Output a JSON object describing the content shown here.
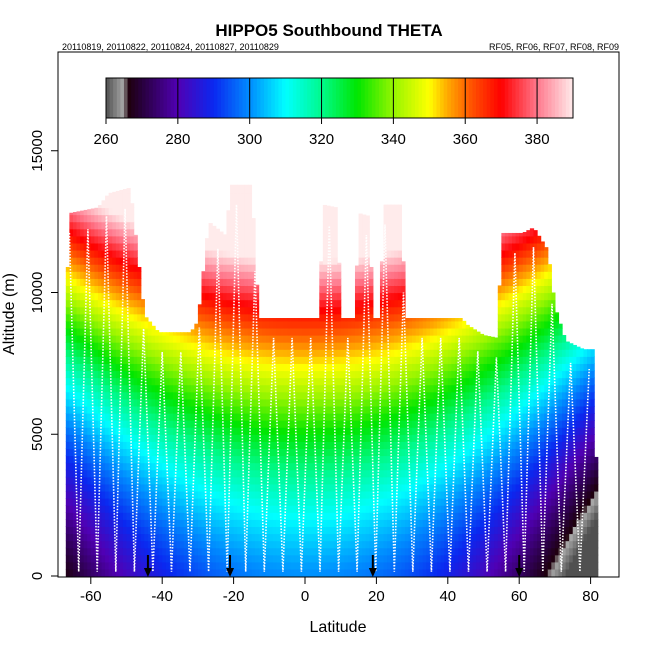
{
  "chart_data": {
    "type": "heatmap",
    "title": "HIPPO5 Southbound THETA",
    "dates_label": "20110819, 20110822, 20110824, 20110827, 20110829",
    "flights_label": "RF05, RF06, RF07, RF08, RF09",
    "xlabel": "Latitude",
    "ylabel": "Altitude (m)",
    "xlim": [
      -70,
      85
    ],
    "ylim": [
      0,
      18000
    ],
    "x_ticks": [
      -60,
      -40,
      -20,
      0,
      20,
      40,
      60,
      80
    ],
    "x_tick_labels": [
      "-60",
      "-40",
      "-20",
      "0",
      "20",
      "40",
      "60",
      "80"
    ],
    "y_ticks": [
      0,
      5000,
      10000,
      15000
    ],
    "y_tick_labels": [
      "0",
      "5000",
      "10000",
      "15000"
    ],
    "colorbar": {
      "range": [
        260,
        390
      ],
      "ticks": [
        260,
        280,
        300,
        320,
        340,
        360,
        380
      ],
      "tick_labels": [
        "260",
        "280",
        "300",
        "320",
        "340",
        "360",
        "380"
      ]
    },
    "ceiling_profile": [
      {
        "lat": -67,
        "alt": 9000
      },
      {
        "lat": -66,
        "alt": 12800
      },
      {
        "lat": -58,
        "alt": 13000
      },
      {
        "lat": -55,
        "alt": 13500
      },
      {
        "lat": -49,
        "alt": 13700
      },
      {
        "lat": -48,
        "alt": 12600
      },
      {
        "lat": -45,
        "alt": 9200
      },
      {
        "lat": -41,
        "alt": 8600
      },
      {
        "lat": -32,
        "alt": 8600
      },
      {
        "lat": -30,
        "alt": 9000
      },
      {
        "lat": -27,
        "alt": 12500
      },
      {
        "lat": -22,
        "alt": 12000
      },
      {
        "lat": -21,
        "alt": 13800
      },
      {
        "lat": -15,
        "alt": 13800
      },
      {
        "lat": -13,
        "alt": 9100
      },
      {
        "lat": 4,
        "alt": 9100
      },
      {
        "lat": 5,
        "alt": 13100
      },
      {
        "lat": 9,
        "alt": 13000
      },
      {
        "lat": 10,
        "alt": 9100
      },
      {
        "lat": 14,
        "alt": 9100
      },
      {
        "lat": 15,
        "alt": 12800
      },
      {
        "lat": 18,
        "alt": 12700
      },
      {
        "lat": 19,
        "alt": 9100
      },
      {
        "lat": 21,
        "alt": 9100
      },
      {
        "lat": 22,
        "alt": 13100
      },
      {
        "lat": 27,
        "alt": 13100
      },
      {
        "lat": 28,
        "alt": 9100
      },
      {
        "lat": 44,
        "alt": 9100
      },
      {
        "lat": 45,
        "alt": 8900
      },
      {
        "lat": 50,
        "alt": 8500
      },
      {
        "lat": 54,
        "alt": 8400
      },
      {
        "lat": 55,
        "alt": 12100
      },
      {
        "lat": 61,
        "alt": 12100
      },
      {
        "lat": 64,
        "alt": 12300
      },
      {
        "lat": 68,
        "alt": 11500
      },
      {
        "lat": 70,
        "alt": 9500
      },
      {
        "lat": 73,
        "alt": 8300
      },
      {
        "lat": 78,
        "alt": 8000
      },
      {
        "lat": 81,
        "alt": 8000
      },
      {
        "lat": 82,
        "alt": 400
      }
    ],
    "flight_tracks": "white dotted sawtooth profiles covering each ascent/descent",
    "arrow_markers_lat": [
      -44,
      -21,
      19,
      60
    ]
  }
}
